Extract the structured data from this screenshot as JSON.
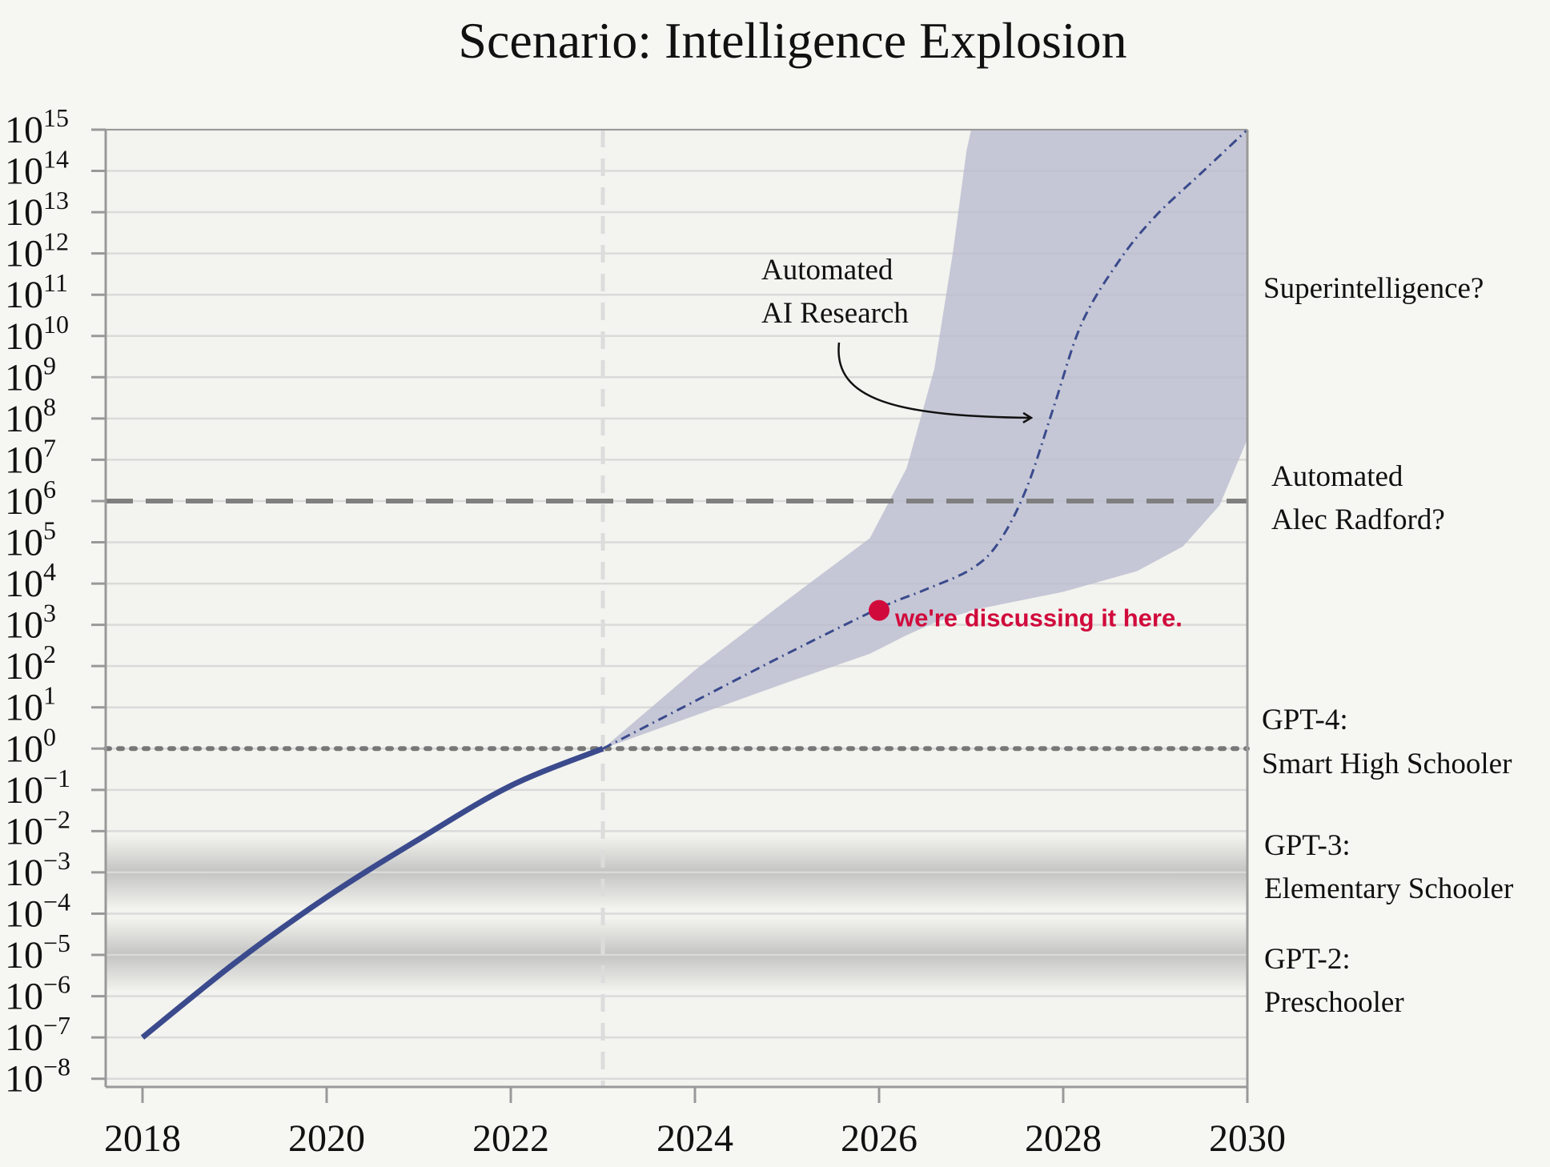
{
  "chart_data": {
    "type": "line",
    "title": "Scenario: Intelligence Explosion",
    "xlabel": "",
    "ylabel": "",
    "scale_y": "log10",
    "xlim": [
      2017.6,
      2030
    ],
    "ylim_exponent": [
      -8.2,
      15
    ],
    "x_ticks": [
      "2018",
      "2020",
      "2022",
      "2024",
      "2026",
      "2028",
      "2030"
    ],
    "x_tick_values": [
      2018,
      2020,
      2022,
      2024,
      2026,
      2028,
      2030
    ],
    "y_tick_exponents": [
      15,
      14,
      13,
      12,
      11,
      10,
      9,
      8,
      7,
      6,
      5,
      4,
      3,
      2,
      1,
      0,
      -1,
      -2,
      -3,
      -4,
      -5,
      -6,
      -7,
      -8
    ],
    "y_tick_base": "10",
    "y_tick_labels": [
      "10^15",
      "10^14",
      "10^13",
      "10^12",
      "10^11",
      "10^10",
      "10^9",
      "10^8",
      "10^7",
      "10^6",
      "10^5",
      "10^4",
      "10^3",
      "10^2",
      "10^1",
      "10^0",
      "10^-1",
      "10^-2",
      "10^-3",
      "10^-4",
      "10^-5",
      "10^-6",
      "10^-7",
      "10^-8"
    ],
    "series": [
      {
        "name": "historical",
        "style": "solid",
        "color": "#3a4a8c",
        "x": [
          2018,
          2019,
          2020,
          2021,
          2022,
          2023
        ],
        "log10_y": [
          -7.0,
          -5.2,
          -3.6,
          -2.2,
          -0.9,
          0.0
        ]
      },
      {
        "name": "projection",
        "style": "dash-dot",
        "color": "#3a4a8c",
        "x": [
          2023,
          2024,
          2025,
          2026,
          2026.5,
          2027,
          2027.3,
          2027.6,
          2027.9,
          2028.2,
          2028.6,
          2029.0,
          2029.5,
          2030
        ],
        "log10_y": [
          0.0,
          1.15,
          2.3,
          3.4,
          3.85,
          4.35,
          5.0,
          6.3,
          8.3,
          10.3,
          11.8,
          12.9,
          13.95,
          15.0
        ]
      }
    ],
    "uncertainty_band": {
      "color": "#b9bbcf",
      "x": [
        2023,
        2024,
        2025,
        2025.9,
        2026.3,
        2026.6,
        2026.8,
        2026.95,
        2027,
        2028,
        2028.8,
        2029.3,
        2029.7,
        2030
      ],
      "log10_upper": [
        0.0,
        1.9,
        3.6,
        5.1,
        6.8,
        9.2,
        12.0,
        14.5,
        15.0,
        15.0,
        15.0,
        15.0,
        15.0,
        15.0
      ],
      "log10_lower": [
        0.0,
        0.8,
        1.6,
        2.3,
        2.75,
        3.05,
        3.2,
        3.3,
        3.35,
        3.8,
        4.3,
        4.9,
        5.9,
        7.5
      ]
    },
    "reference_lines": [
      {
        "name": "automated-alec-radford-line",
        "log10_y": 6,
        "style": "dashed"
      },
      {
        "name": "gpt4-line",
        "log10_y": 0,
        "style": "dotted"
      }
    ],
    "vertical_line": {
      "x": 2023,
      "style": "dashed"
    },
    "shaded_bands": [
      {
        "name": "gpt3-band",
        "log10_y": -3
      },
      {
        "name": "gpt2-band",
        "log10_y": -5
      }
    ],
    "level_labels": [
      {
        "name": "superintelligence",
        "lines": [
          "Superintelligence?"
        ]
      },
      {
        "name": "alec-radford",
        "lines": [
          "Automated",
          "Alec Radford?"
        ]
      },
      {
        "name": "gpt4",
        "lines": [
          "GPT-4:",
          "Smart High Schooler"
        ]
      },
      {
        "name": "gpt3",
        "lines": [
          "GPT-3:",
          "Elementary Schooler"
        ]
      },
      {
        "name": "gpt2",
        "lines": [
          "GPT-2:",
          "Preschooler"
        ]
      }
    ],
    "annotation": {
      "lines": [
        "Automated",
        "AI Research"
      ]
    },
    "marker": {
      "x": 2026,
      "log10_y": 3.35,
      "color": "#d10a3c",
      "label": "we're discussing it here."
    }
  }
}
